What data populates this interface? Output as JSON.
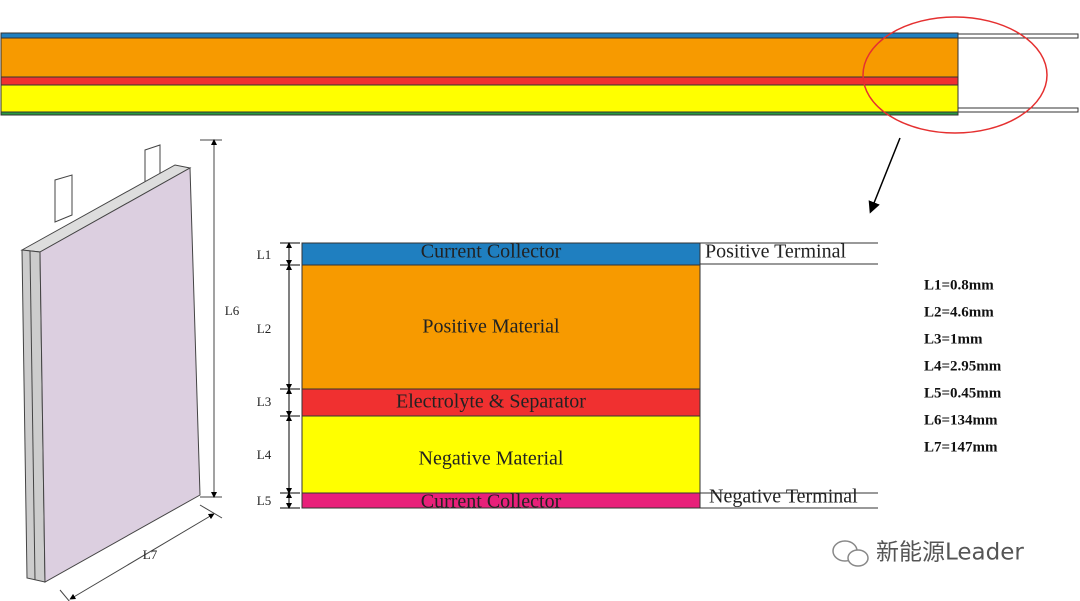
{
  "layers": [
    {
      "dim": "L1",
      "label": "Current Collector"
    },
    {
      "dim": "L2",
      "label": "Positive Material"
    },
    {
      "dim": "L3",
      "label": "Electrolyte & Separator"
    },
    {
      "dim": "L4",
      "label": "Negative Material"
    },
    {
      "dim": "L5",
      "label": "Current Collector"
    }
  ],
  "terminals": [
    "Positive Terminal",
    "Negative Terminal"
  ],
  "cell_dims": [
    "L6",
    "L7"
  ],
  "parameters": [
    "L1=0.8mm",
    "L2=4.6mm",
    "L3=1mm",
    "L4=2.95mm",
    "L5=0.45mm",
    "L6=134mm",
    "L7=147mm"
  ],
  "watermark": "新能源Leader"
}
